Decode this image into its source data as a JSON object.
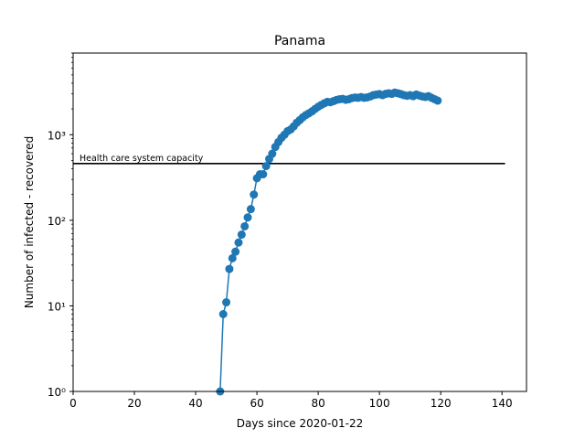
{
  "chart_data": {
    "type": "scatter",
    "title": "Panama",
    "xlabel": "Days since 2020-01-22",
    "ylabel": "Number of infected - recovered",
    "yscale": "log",
    "xlim": [
      0,
      148
    ],
    "ylim": [
      1,
      9000
    ],
    "xticks": [
      0,
      20,
      40,
      60,
      80,
      100,
      120,
      140
    ],
    "yticks": [
      {
        "value": 1,
        "label": "10⁰"
      },
      {
        "value": 10,
        "label": "10¹"
      },
      {
        "value": 100,
        "label": "10²"
      },
      {
        "value": 1000,
        "label": "10³"
      }
    ],
    "grid": false,
    "legend": "none",
    "series": [
      {
        "color": "#1f77b4",
        "marker": "circle",
        "line": true,
        "x": [
          48,
          49,
          50,
          51,
          52,
          53,
          54,
          55,
          56,
          57,
          58,
          59,
          60,
          61,
          62,
          63,
          64,
          65,
          66,
          67,
          68,
          69,
          70,
          71,
          72,
          73,
          74,
          75,
          76,
          77,
          78,
          79,
          80,
          81,
          82,
          83,
          84,
          85,
          86,
          87,
          88,
          89,
          90,
          91,
          92,
          93,
          94,
          95,
          96,
          97,
          98,
          99,
          100,
          101,
          102,
          103,
          104,
          105,
          106,
          107,
          108,
          109,
          110,
          111,
          112,
          113,
          114,
          115,
          116,
          117,
          118,
          119
        ],
        "y": [
          1,
          8,
          11,
          27,
          36,
          43,
          55,
          68,
          85,
          108,
          135,
          200,
          310,
          345,
          345,
          430,
          520,
          600,
          720,
          820,
          920,
          1000,
          1100,
          1150,
          1250,
          1380,
          1480,
          1600,
          1700,
          1780,
          1880,
          2000,
          2120,
          2230,
          2330,
          2420,
          2400,
          2470,
          2550,
          2600,
          2620,
          2560,
          2600,
          2680,
          2720,
          2700,
          2750,
          2700,
          2730,
          2800,
          2900,
          2950,
          2980,
          2900,
          3000,
          3050,
          3000,
          3100,
          3050,
          2980,
          2900,
          2850,
          2900,
          2820,
          2950,
          2870,
          2800,
          2760,
          2820,
          2700,
          2600,
          2500
        ]
      }
    ],
    "annotations": [
      {
        "text": "Health care system capacity",
        "type": "hline",
        "y": 460,
        "x_start": 0,
        "x_end": 141,
        "color": "#000000"
      }
    ]
  }
}
